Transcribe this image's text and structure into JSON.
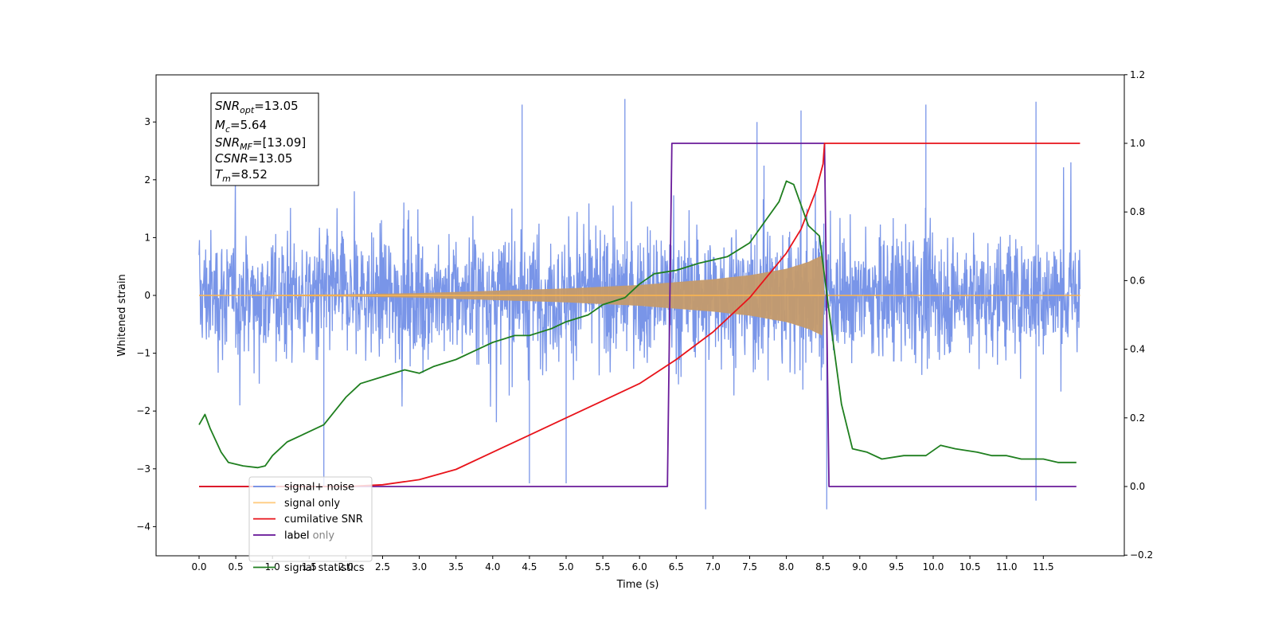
{
  "chart_data": {
    "type": "line",
    "xlabel": "Time (s)",
    "ylabel": "Whitened strain",
    "xlim": [
      -0.6,
      12.6
    ],
    "ylim": [
      -4.6,
      3.8
    ],
    "ylim_right": [
      -0.2,
      1.2
    ],
    "x_ticks": [
      "0.0",
      "0.5",
      "1.0",
      "1.5",
      "2.0",
      "2.5",
      "3.0",
      "3.5",
      "4.0",
      "4.5",
      "5.0",
      "5.5",
      "6.0",
      "6.5",
      "7.0",
      "7.5",
      "8.0",
      "8.5",
      "9.0",
      "9.5",
      "10.0",
      "10.5",
      "11.0",
      "11.5"
    ],
    "y_ticks_left": [
      "3",
      "2",
      "1",
      "0",
      "−1",
      "−2",
      "−3",
      "−4"
    ],
    "y_ticks_right": [
      "1.2",
      "1.0",
      "0.8",
      "0.6",
      "0.4",
      "0.2",
      "0.0",
      "−0.2"
    ],
    "grid": false,
    "legend_position": "lower-left",
    "annotation": {
      "snr_opt_label": "SNR",
      "snr_opt_sub": "opt",
      "snr_opt_value": "=13.05",
      "mc_label": "M",
      "mc_sub": "c",
      "mc_value": "=5.64",
      "snr_mf_label": "SNR",
      "snr_mf_sub": "MF",
      "snr_mf_value": "=[13.09]",
      "csnr_label": "CSNR",
      "csnr_value": "=13.05",
      "tm_label": "T",
      "tm_sub": "m",
      "tm_value": "=8.52"
    },
    "series": [
      {
        "name": "signal+ noise",
        "axis": "left",
        "color": "#6a8ae6",
        "description_values": "whitened noise plus signal, approx range -3.7 to 3.4",
        "envelope_upper": [
          [
            0,
            1.3
          ],
          [
            1,
            1.5
          ],
          [
            2,
            1.6
          ],
          [
            3,
            1.6
          ],
          [
            4,
            1.6
          ],
          [
            5,
            1.6
          ],
          [
            5.8,
            3.4
          ],
          [
            6,
            1.7
          ],
          [
            7,
            1.8
          ],
          [
            8,
            1.9
          ],
          [
            8.5,
            1.5
          ],
          [
            9,
            1.6
          ],
          [
            10,
            1.6
          ],
          [
            11,
            1.6
          ],
          [
            12,
            1.6
          ]
        ],
        "peaks": [
          [
            4.4,
            3.3
          ],
          [
            5.8,
            3.4
          ],
          [
            7.6,
            3.0
          ],
          [
            8.2,
            3.2
          ],
          [
            9.9,
            3.3
          ],
          [
            11.4,
            3.35
          ],
          [
            6.9,
            -3.7
          ],
          [
            8.55,
            -3.7
          ],
          [
            11.4,
            -3.55
          ],
          [
            1.7,
            -3.3
          ],
          [
            4.5,
            -3.25
          ],
          [
            5.0,
            -3.25
          ]
        ]
      },
      {
        "name": "signal only",
        "axis": "left",
        "color": "#ffb74d",
        "envelope": [
          [
            0,
            0.0
          ],
          [
            2,
            0.02
          ],
          [
            3,
            0.04
          ],
          [
            4,
            0.08
          ],
          [
            5,
            0.12
          ],
          [
            6,
            0.18
          ],
          [
            6.5,
            0.23
          ],
          [
            7,
            0.28
          ],
          [
            7.5,
            0.35
          ],
          [
            8,
            0.46
          ],
          [
            8.3,
            0.58
          ],
          [
            8.5,
            0.7
          ],
          [
            8.52,
            0.0
          ],
          [
            12,
            0.0
          ]
        ]
      },
      {
        "name": "cumilative SNR",
        "axis": "right",
        "color": "#e8131a",
        "x": [
          0,
          1,
          2,
          2.5,
          3,
          3.5,
          4,
          4.5,
          5,
          5.5,
          6,
          6.5,
          7,
          7.5,
          8,
          8.2,
          8.4,
          8.5,
          8.52,
          12
        ],
        "y": [
          0,
          0,
          0,
          0.005,
          0.02,
          0.05,
          0.1,
          0.15,
          0.2,
          0.25,
          0.3,
          0.37,
          0.45,
          0.55,
          0.68,
          0.75,
          0.86,
          0.94,
          1.0,
          1.0
        ]
      },
      {
        "name": "label",
        "axis": "right",
        "color": "#6a1b9a",
        "x": [
          0,
          6.38,
          6.44,
          8.52,
          8.58,
          11.95
        ],
        "y": [
          0,
          0,
          1,
          1,
          0,
          0
        ]
      },
      {
        "name": "label only",
        "axis": "right",
        "color": "#6a1b9a",
        "x": [],
        "y": []
      },
      {
        "name": "signal statistics",
        "axis": "right",
        "color": "#1f7f1f",
        "x": [
          0,
          0.08,
          0.15,
          0.3,
          0.4,
          0.6,
          0.8,
          0.9,
          1.0,
          1.2,
          1.4,
          1.7,
          2.0,
          2.2,
          2.5,
          2.8,
          3.0,
          3.2,
          3.5,
          3.8,
          4.0,
          4.3,
          4.5,
          4.8,
          5.0,
          5.3,
          5.5,
          5.8,
          6.0,
          6.2,
          6.5,
          6.8,
          7.0,
          7.2,
          7.5,
          7.7,
          7.9,
          8.0,
          8.1,
          8.3,
          8.45,
          8.6,
          8.75,
          8.9,
          9.1,
          9.3,
          9.6,
          9.9,
          10.1,
          10.3,
          10.6,
          10.8,
          11.0,
          11.2,
          11.5,
          11.7,
          11.95
        ],
        "y": [
          0.18,
          0.21,
          0.17,
          0.1,
          0.07,
          0.06,
          0.055,
          0.06,
          0.09,
          0.13,
          0.15,
          0.18,
          0.26,
          0.3,
          0.32,
          0.34,
          0.33,
          0.35,
          0.37,
          0.4,
          0.42,
          0.44,
          0.44,
          0.46,
          0.48,
          0.5,
          0.53,
          0.55,
          0.59,
          0.62,
          0.63,
          0.65,
          0.66,
          0.67,
          0.71,
          0.77,
          0.83,
          0.89,
          0.88,
          0.76,
          0.73,
          0.48,
          0.24,
          0.11,
          0.1,
          0.08,
          0.09,
          0.09,
          0.12,
          0.11,
          0.1,
          0.09,
          0.09,
          0.08,
          0.08,
          0.07,
          0.07
        ]
      }
    ]
  }
}
